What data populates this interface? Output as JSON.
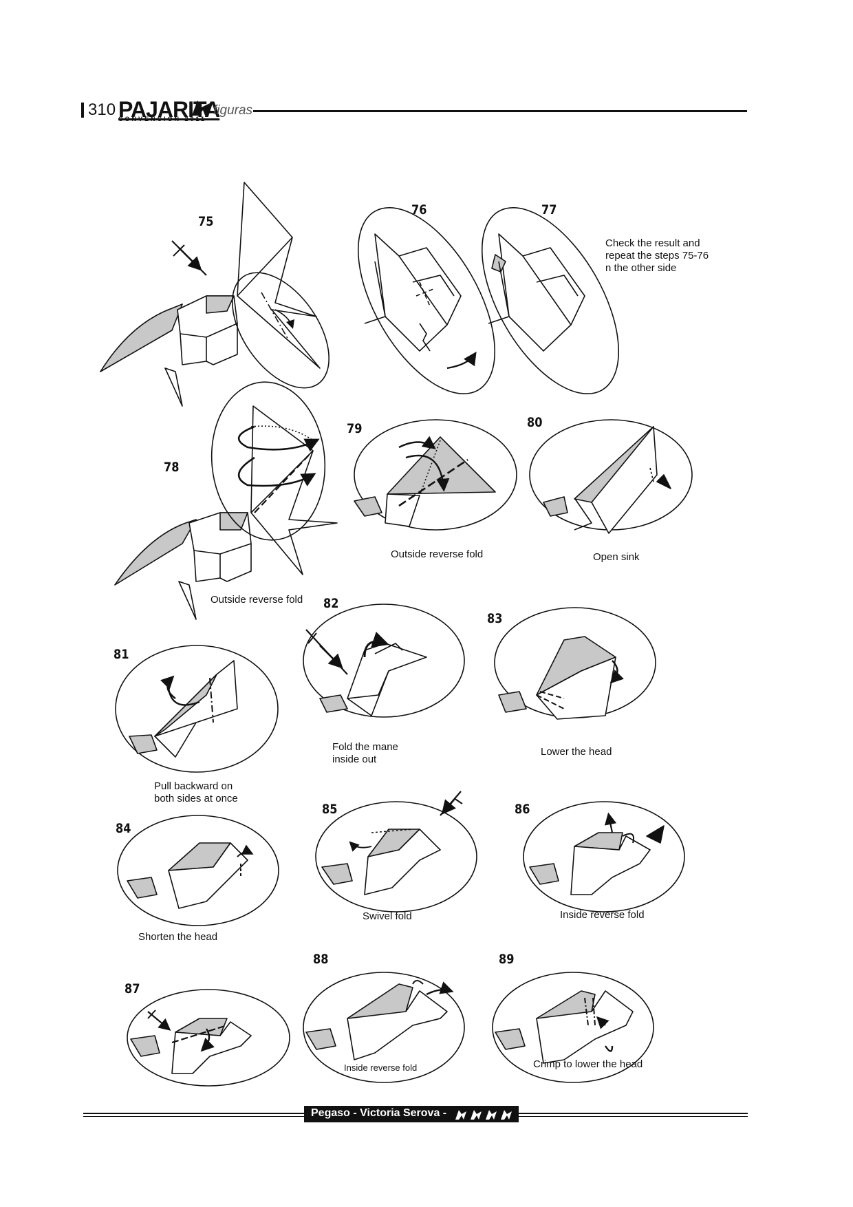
{
  "header": {
    "page_number": "310",
    "brand": "PAJARITA",
    "brand_subtitle": "CONVENCION 2011",
    "section": "figuras"
  },
  "steps": [
    {
      "num": "75",
      "caption": ""
    },
    {
      "num": "76",
      "caption": ""
    },
    {
      "num": "77",
      "caption": "Check the result and\nrepeat the steps 75-76\nn the other side"
    },
    {
      "num": "78",
      "caption": "Outside reverse fold"
    },
    {
      "num": "79",
      "caption": "Outside reverse fold"
    },
    {
      "num": "80",
      "caption": "Open sink"
    },
    {
      "num": "81",
      "caption": "Pull backward on\nboth sides at once"
    },
    {
      "num": "82",
      "caption": "Fold the mane\ninside out"
    },
    {
      "num": "83",
      "caption": "Lower the head"
    },
    {
      "num": "84",
      "caption": "Shorten the head"
    },
    {
      "num": "85",
      "caption": "Swivel fold"
    },
    {
      "num": "86",
      "caption": "Inside reverse fold"
    },
    {
      "num": "87",
      "caption": ""
    },
    {
      "num": "88",
      "caption": "Inside reverse fold"
    },
    {
      "num": "89",
      "caption": "Crimp to lower the head"
    }
  ],
  "footer": {
    "title": "Pegaso - Victoria Serova -",
    "difficulty_icons": "pajarita-bird-icon x4"
  }
}
